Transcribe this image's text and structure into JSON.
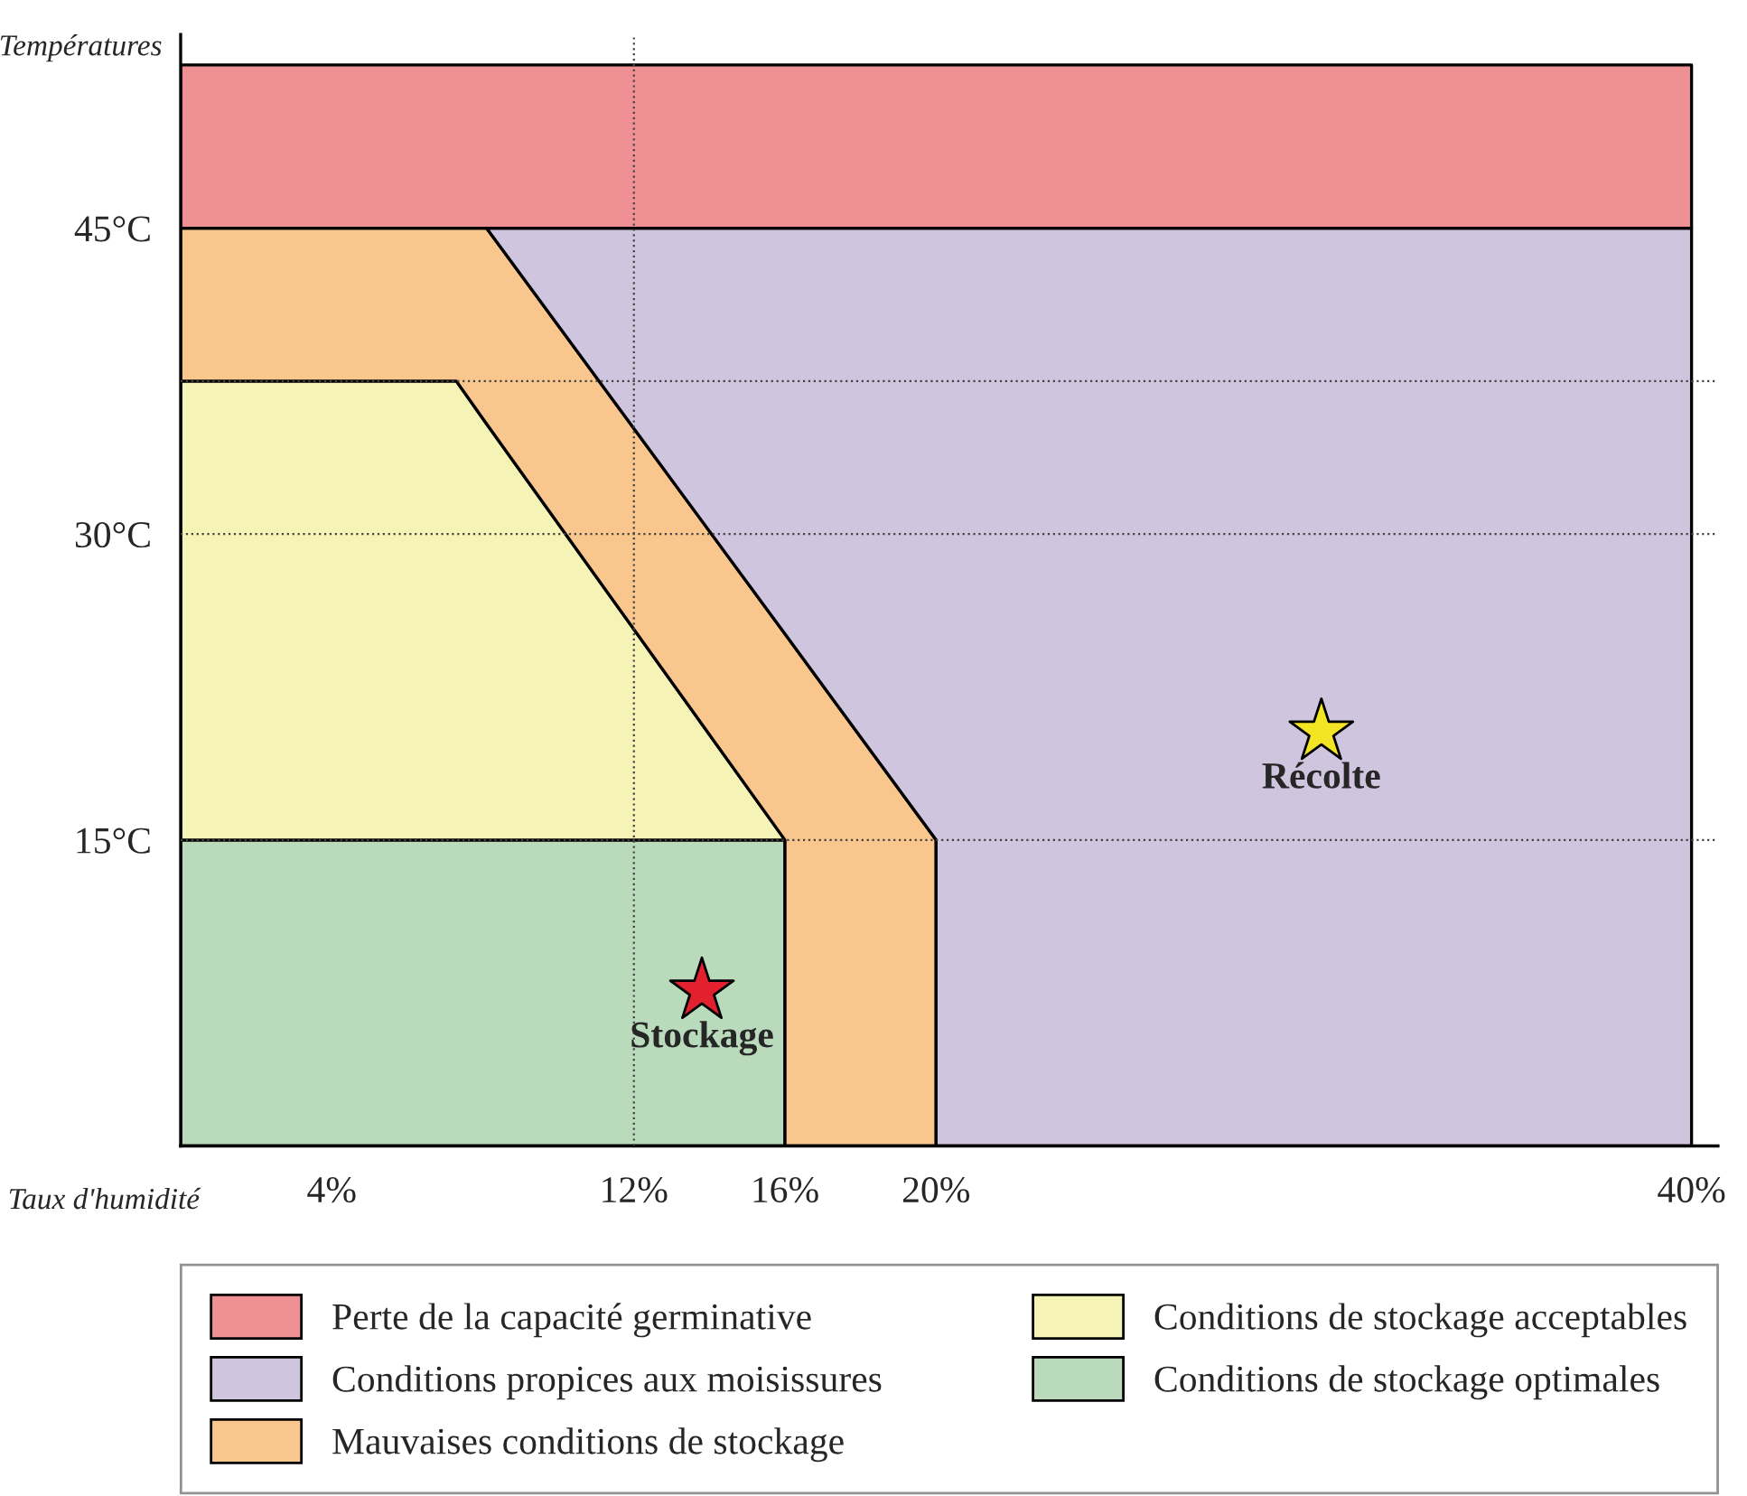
{
  "chart_data": {
    "type": "area",
    "stacked": true,
    "xlabel": "Taux d'humidité",
    "ylabel": "Températures",
    "x": [
      0,
      7.3,
      8.1,
      16,
      16,
      20,
      20,
      40
    ],
    "series": [
      {
        "name": "Conditions de stockage optimales",
        "color": "#b9dabb",
        "values": [
          15,
          15,
          15,
          15,
          null,
          null,
          null,
          null
        ]
      },
      {
        "name": "Conditions de stockage acceptables",
        "color": "#f5f3b5",
        "values": [
          22.5,
          22.5,
          20.4,
          0,
          null,
          null,
          null,
          null
        ]
      },
      {
        "name": "Mauvaises conditions de stockage",
        "color": "#f9c78d",
        "values": [
          7.5,
          7.5,
          9.6,
          10.1,
          25.1,
          15,
          null,
          null
        ]
      },
      {
        "name": "Conditions propices aux moisissures",
        "color": "#cfc5df",
        "values": [
          null,
          null,
          0,
          19.9,
          19.9,
          30,
          45,
          45
        ]
      },
      {
        "name": "Perte de la capacité germinative",
        "color": "#ef9095",
        "values": [
          8,
          8,
          8,
          8,
          8,
          8,
          8,
          8
        ]
      },
      {
        "type": "scatter",
        "name": "Stockage",
        "color": "#e3202e",
        "marker": "star",
        "x": [
          13.8
        ],
        "values": [
          7.6
        ]
      },
      {
        "type": "scatter",
        "name": "Récolte",
        "color": "#f3e524",
        "marker": "star",
        "x": [
          30.2
        ],
        "values": [
          20.3
        ]
      }
    ],
    "xlim": [
      0,
      40.7
    ],
    "ylim": [
      0,
      54.5
    ],
    "xticks": [
      {
        "value": 4,
        "label": "4%"
      },
      {
        "value": 12,
        "label": "12%"
      },
      {
        "value": 16,
        "label": "16%"
      },
      {
        "value": 20,
        "label": "20%"
      },
      {
        "value": 40,
        "label": "40%"
      }
    ],
    "yticks": [
      {
        "value": 15,
        "label": "15°C"
      },
      {
        "value": 30,
        "label": "30°C"
      },
      {
        "value": 45,
        "label": "45°C"
      }
    ],
    "ref_lines": [
      {
        "axis": "y",
        "value": 15,
        "line_style": "dotted"
      },
      {
        "axis": "y",
        "value": 30,
        "line_style": "dotted"
      },
      {
        "axis": "y",
        "value": 37.5,
        "line_style": "dotted"
      },
      {
        "axis": "x",
        "value": 12,
        "line_style": "dotted"
      }
    ],
    "legend": "bottom",
    "grid": false
  }
}
